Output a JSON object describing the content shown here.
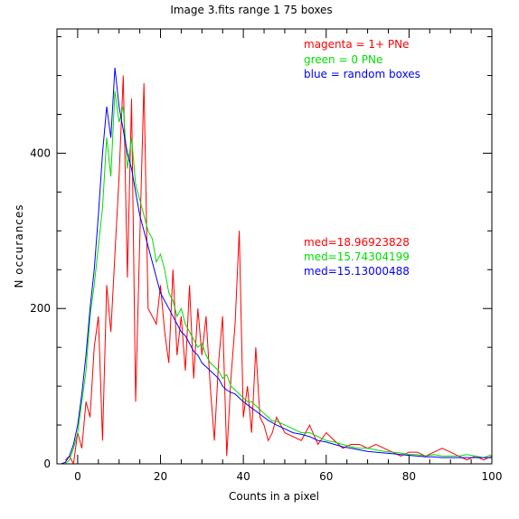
{
  "chart_data": {
    "type": "line",
    "title": "Image 3.fits   range 1    75 boxes",
    "xlabel": "Counts in a pixel",
    "ylabel": "N occurances",
    "xlim": [
      -5,
      100
    ],
    "ylim": [
      0,
      560
    ],
    "xticks": [
      0,
      20,
      40,
      60,
      80,
      100
    ],
    "yticks": [
      0,
      200,
      400
    ],
    "grid": false,
    "legend_placement": "top-right",
    "legend": [
      {
        "text": "magenta = 1+ PNe",
        "color": "#ff0000"
      },
      {
        "text": "green = 0 PNe",
        "color": "#00dd00"
      },
      {
        "text": "blue = random boxes",
        "color": "#0000ff"
      }
    ],
    "medians": [
      {
        "text": "med=18.96923828",
        "color": "#ff0000"
      },
      {
        "text": "med=15.74304199",
        "color": "#00dd00"
      },
      {
        "text": "med=15.13000488",
        "color": "#0000ff"
      }
    ],
    "series": [
      {
        "color": "#ff0000",
        "x": [
          -3,
          -2,
          -1,
          0,
          1,
          2,
          3,
          4,
          5,
          6,
          7,
          8,
          9,
          10,
          11,
          12,
          13,
          14,
          15,
          16,
          17,
          18,
          19,
          20,
          21,
          22,
          23,
          24,
          25,
          26,
          27,
          28,
          29,
          30,
          31,
          32,
          33,
          34,
          35,
          36,
          37,
          38,
          39,
          40,
          41,
          42,
          43,
          44,
          45,
          46,
          47,
          48,
          50,
          52,
          54,
          56,
          58,
          60,
          62,
          64,
          66,
          68,
          70,
          72,
          74,
          76,
          78,
          80,
          82,
          84,
          86,
          88,
          90,
          92,
          94,
          96,
          98,
          100
        ],
        "y": [
          5,
          10,
          0,
          40,
          20,
          80,
          60,
          150,
          190,
          30,
          230,
          170,
          270,
          370,
          500,
          240,
          470,
          80,
          290,
          490,
          200,
          190,
          180,
          230,
          170,
          130,
          250,
          140,
          190,
          120,
          230,
          110,
          200,
          140,
          190,
          100,
          30,
          130,
          190,
          10,
          110,
          180,
          300,
          60,
          100,
          40,
          150,
          60,
          50,
          30,
          40,
          60,
          40,
          35,
          30,
          50,
          25,
          40,
          30,
          20,
          25,
          25,
          20,
          25,
          20,
          15,
          10,
          15,
          15,
          10,
          15,
          20,
          15,
          10,
          5,
          10,
          5,
          10
        ]
      },
      {
        "color": "#00dd00",
        "x": [
          -5,
          -4,
          -3,
          -2,
          -1,
          0,
          1,
          2,
          3,
          4,
          5,
          6,
          7,
          8,
          9,
          10,
          11,
          12,
          13,
          14,
          15,
          16,
          17,
          18,
          19,
          20,
          21,
          22,
          23,
          24,
          25,
          26,
          27,
          28,
          29,
          30,
          31,
          32,
          33,
          34,
          35,
          36,
          37,
          38,
          39,
          40,
          41,
          42,
          43,
          44,
          45,
          46,
          47,
          48,
          50,
          52,
          54,
          56,
          58,
          60,
          62,
          64,
          66,
          68,
          70,
          72,
          74,
          76,
          78,
          80,
          82,
          84,
          86,
          88,
          90,
          92,
          94,
          96,
          98,
          100
        ],
        "y": [
          0,
          0,
          0,
          5,
          20,
          40,
          80,
          120,
          190,
          230,
          280,
          330,
          420,
          370,
          480,
          440,
          460,
          380,
          420,
          360,
          340,
          320,
          300,
          290,
          260,
          270,
          250,
          220,
          210,
          190,
          200,
          180,
          170,
          160,
          150,
          155,
          140,
          130,
          125,
          120,
          110,
          115,
          100,
          95,
          90,
          85,
          80,
          80,
          75,
          70,
          65,
          60,
          55,
          55,
          50,
          45,
          40,
          40,
          35,
          30,
          28,
          25,
          22,
          20,
          20,
          18,
          16,
          15,
          14,
          12,
          12,
          10,
          12,
          10,
          10,
          10,
          12,
          10,
          8,
          12
        ]
      },
      {
        "color": "#0000ff",
        "x": [
          -5,
          -4,
          -3,
          -2,
          -1,
          0,
          1,
          2,
          3,
          4,
          5,
          6,
          7,
          8,
          9,
          10,
          11,
          12,
          13,
          14,
          15,
          16,
          17,
          18,
          19,
          20,
          21,
          22,
          23,
          24,
          25,
          26,
          27,
          28,
          29,
          30,
          31,
          32,
          33,
          34,
          35,
          36,
          37,
          38,
          39,
          40,
          41,
          42,
          43,
          44,
          45,
          46,
          47,
          48,
          50,
          52,
          54,
          56,
          58,
          60,
          62,
          64,
          66,
          68,
          70,
          72,
          74,
          76,
          78,
          80,
          82,
          84,
          86,
          88,
          90,
          92,
          94,
          96,
          98,
          100
        ],
        "y": [
          0,
          0,
          2,
          10,
          25,
          50,
          90,
          140,
          200,
          250,
          320,
          400,
          460,
          420,
          510,
          460,
          430,
          400,
          380,
          350,
          320,
          300,
          280,
          260,
          240,
          220,
          210,
          200,
          190,
          180,
          170,
          165,
          155,
          145,
          140,
          130,
          125,
          120,
          115,
          110,
          100,
          95,
          92,
          90,
          85,
          80,
          76,
          72,
          68,
          64,
          60,
          56,
          53,
          50,
          45,
          40,
          38,
          35,
          30,
          28,
          25,
          22,
          20,
          18,
          16,
          15,
          14,
          13,
          12,
          11,
          10,
          9,
          9,
          8,
          8,
          8,
          8,
          8,
          8,
          8
        ]
      }
    ]
  }
}
